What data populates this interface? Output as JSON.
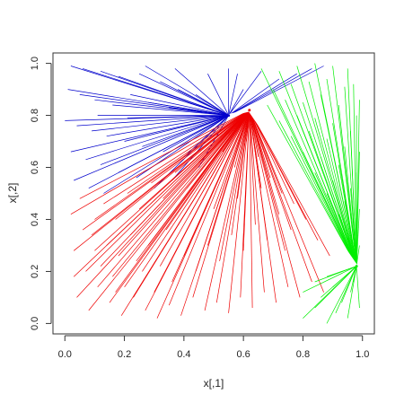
{
  "chart_data": {
    "type": "scatter",
    "title": "",
    "xlabel": "x[,1]",
    "ylabel": "x[,2]",
    "xlim": [
      -0.04,
      1.04
    ],
    "ylim": [
      -0.04,
      1.04
    ],
    "xticks": [
      "0.0",
      "0.2",
      "0.4",
      "0.6",
      "0.8",
      "1.0"
    ],
    "yticks": [
      "0.0",
      "0.2",
      "0.4",
      "0.6",
      "0.8",
      "1.0"
    ],
    "grid": false,
    "legend": "none",
    "hub_colors": [
      "#0000cc",
      "#ee0000",
      "#00ee00"
    ],
    "hubs": [
      {
        "x": 0.55,
        "y": 0.8
      },
      {
        "x": 0.62,
        "y": 0.82
      },
      {
        "x": 0.98,
        "y": 0.22
      }
    ],
    "series": [
      {
        "color": "#0000cc",
        "points": [
          [
            0.02,
            0.99
          ],
          [
            0.06,
            0.98
          ],
          [
            0.12,
            0.97
          ],
          [
            0.18,
            0.95
          ],
          [
            0.25,
            0.96
          ],
          [
            0.32,
            0.93
          ],
          [
            0.38,
            0.9
          ],
          [
            0.44,
            0.88
          ],
          [
            0.01,
            0.9
          ],
          [
            0.05,
            0.88
          ],
          [
            0.1,
            0.86
          ],
          [
            0.16,
            0.84
          ],
          [
            0.22,
            0.88
          ],
          [
            0.28,
            0.85
          ],
          [
            0.35,
            0.83
          ],
          [
            0.41,
            0.85
          ],
          [
            0.0,
            0.78
          ],
          [
            0.04,
            0.76
          ],
          [
            0.09,
            0.74
          ],
          [
            0.14,
            0.72
          ],
          [
            0.2,
            0.7
          ],
          [
            0.26,
            0.68
          ],
          [
            0.33,
            0.66
          ],
          [
            0.4,
            0.64
          ],
          [
            0.02,
            0.66
          ],
          [
            0.07,
            0.63
          ],
          [
            0.12,
            0.61
          ],
          [
            0.18,
            0.58
          ],
          [
            0.24,
            0.56
          ],
          [
            0.3,
            0.52
          ],
          [
            0.36,
            0.55
          ],
          [
            0.45,
            0.6
          ],
          [
            0.03,
            0.55
          ],
          [
            0.08,
            0.52
          ],
          [
            0.13,
            0.5
          ],
          [
            0.48,
            0.96
          ],
          [
            0.37,
            0.98
          ],
          [
            0.27,
            0.99
          ],
          [
            0.21,
            0.79
          ],
          [
            0.11,
            0.8
          ],
          [
            0.55,
            0.98
          ],
          [
            0.58,
            0.96
          ],
          [
            0.66,
            0.97
          ],
          [
            0.72,
            0.94
          ],
          [
            0.78,
            0.96
          ],
          [
            0.83,
            0.98
          ],
          [
            0.87,
            0.99
          ],
          [
            0.6,
            0.9
          ]
        ]
      },
      {
        "color": "#ee0000",
        "points": [
          [
            0.02,
            0.42
          ],
          [
            0.06,
            0.36
          ],
          [
            0.1,
            0.4
          ],
          [
            0.14,
            0.3
          ],
          [
            0.18,
            0.26
          ],
          [
            0.22,
            0.34
          ],
          [
            0.26,
            0.2
          ],
          [
            0.3,
            0.12
          ],
          [
            0.03,
            0.28
          ],
          [
            0.07,
            0.2
          ],
          [
            0.11,
            0.14
          ],
          [
            0.15,
            0.08
          ],
          [
            0.19,
            0.03
          ],
          [
            0.23,
            0.1
          ],
          [
            0.27,
            0.05
          ],
          [
            0.31,
            0.02
          ],
          [
            0.35,
            0.07
          ],
          [
            0.39,
            0.03
          ],
          [
            0.43,
            0.1
          ],
          [
            0.47,
            0.05
          ],
          [
            0.51,
            0.08
          ],
          [
            0.55,
            0.04
          ],
          [
            0.59,
            0.1
          ],
          [
            0.63,
            0.06
          ],
          [
            0.67,
            0.12
          ],
          [
            0.71,
            0.08
          ],
          [
            0.75,
            0.14
          ],
          [
            0.79,
            0.1
          ],
          [
            0.83,
            0.16
          ],
          [
            0.87,
            0.12
          ],
          [
            0.04,
            0.1
          ],
          [
            0.08,
            0.05
          ],
          [
            0.12,
            0.22
          ],
          [
            0.16,
            0.18
          ],
          [
            0.2,
            0.14
          ],
          [
            0.24,
            0.24
          ],
          [
            0.28,
            0.3
          ],
          [
            0.32,
            0.22
          ],
          [
            0.36,
            0.16
          ],
          [
            0.4,
            0.26
          ],
          [
            0.44,
            0.2
          ],
          [
            0.48,
            0.3
          ],
          [
            0.52,
            0.24
          ],
          [
            0.56,
            0.34
          ],
          [
            0.6,
            0.28
          ],
          [
            0.64,
            0.38
          ],
          [
            0.68,
            0.32
          ],
          [
            0.72,
            0.42
          ],
          [
            0.76,
            0.36
          ],
          [
            0.05,
            0.48
          ],
          [
            0.09,
            0.34
          ],
          [
            0.13,
            0.46
          ],
          [
            0.17,
            0.4
          ],
          [
            0.21,
            0.5
          ],
          [
            0.25,
            0.44
          ],
          [
            0.29,
            0.54
          ],
          [
            0.33,
            0.48
          ],
          [
            0.37,
            0.58
          ],
          [
            0.41,
            0.52
          ],
          [
            0.45,
            0.62
          ],
          [
            0.49,
            0.56
          ],
          [
            0.53,
            0.66
          ],
          [
            0.57,
            0.6
          ],
          [
            0.61,
            0.7
          ],
          [
            0.65,
            0.64
          ],
          [
            0.69,
            0.56
          ],
          [
            0.73,
            0.5
          ],
          [
            0.77,
            0.46
          ],
          [
            0.81,
            0.4
          ],
          [
            0.85,
            0.32
          ],
          [
            0.89,
            0.26
          ],
          [
            0.03,
            0.18
          ],
          [
            0.1,
            0.28
          ],
          [
            0.17,
            0.12
          ],
          [
            0.34,
            0.36
          ],
          [
            0.42,
            0.42
          ],
          [
            0.5,
            0.44
          ],
          [
            0.58,
            0.48
          ],
          [
            0.66,
            0.52
          ],
          [
            0.74,
            0.28
          ]
        ]
      },
      {
        "color": "#00ee00",
        "points": [
          [
            0.66,
            0.98
          ],
          [
            0.72,
            0.97
          ],
          [
            0.78,
            0.99
          ],
          [
            0.84,
            1.0
          ],
          [
            0.9,
            0.99
          ],
          [
            0.95,
            0.98
          ],
          [
            0.97,
            0.92
          ],
          [
            0.99,
            0.86
          ],
          [
            0.7,
            0.9
          ],
          [
            0.76,
            0.92
          ],
          [
            0.82,
            0.93
          ],
          [
            0.88,
            0.94
          ],
          [
            0.94,
            0.91
          ],
          [
            0.68,
            0.84
          ],
          [
            0.74,
            0.86
          ],
          [
            0.8,
            0.85
          ],
          [
            0.86,
            0.88
          ],
          [
            0.92,
            0.84
          ],
          [
            0.98,
            0.8
          ],
          [
            0.72,
            0.78
          ],
          [
            0.78,
            0.8
          ],
          [
            0.84,
            0.79
          ],
          [
            0.9,
            0.77
          ],
          [
            0.96,
            0.74
          ],
          [
            0.76,
            0.72
          ],
          [
            0.82,
            0.74
          ],
          [
            0.88,
            0.71
          ],
          [
            0.94,
            0.68
          ],
          [
            0.99,
            0.66
          ],
          [
            0.8,
            0.66
          ],
          [
            0.86,
            0.64
          ],
          [
            0.92,
            0.61
          ],
          [
            0.98,
            0.58
          ],
          [
            0.84,
            0.58
          ],
          [
            0.9,
            0.55
          ],
          [
            0.96,
            0.52
          ],
          [
            0.88,
            0.5
          ],
          [
            0.94,
            0.47
          ],
          [
            0.99,
            0.44
          ],
          [
            0.92,
            0.42
          ],
          [
            0.97,
            0.38
          ],
          [
            0.95,
            0.33
          ],
          [
            0.99,
            0.3
          ],
          [
            0.8,
            0.02
          ],
          [
            0.84,
            0.06
          ],
          [
            0.88,
            0.0
          ],
          [
            0.91,
            0.04
          ],
          [
            0.86,
            0.1
          ],
          [
            0.93,
            0.08
          ],
          [
            0.96,
            0.12
          ],
          [
            0.9,
            0.14
          ],
          [
            0.95,
            0.02
          ],
          [
            0.8,
            0.12
          ],
          [
            0.84,
            0.16
          ],
          [
            0.99,
            0.06
          ],
          [
            0.97,
            0.16
          ],
          [
            0.88,
            0.18
          ]
        ]
      }
    ]
  }
}
